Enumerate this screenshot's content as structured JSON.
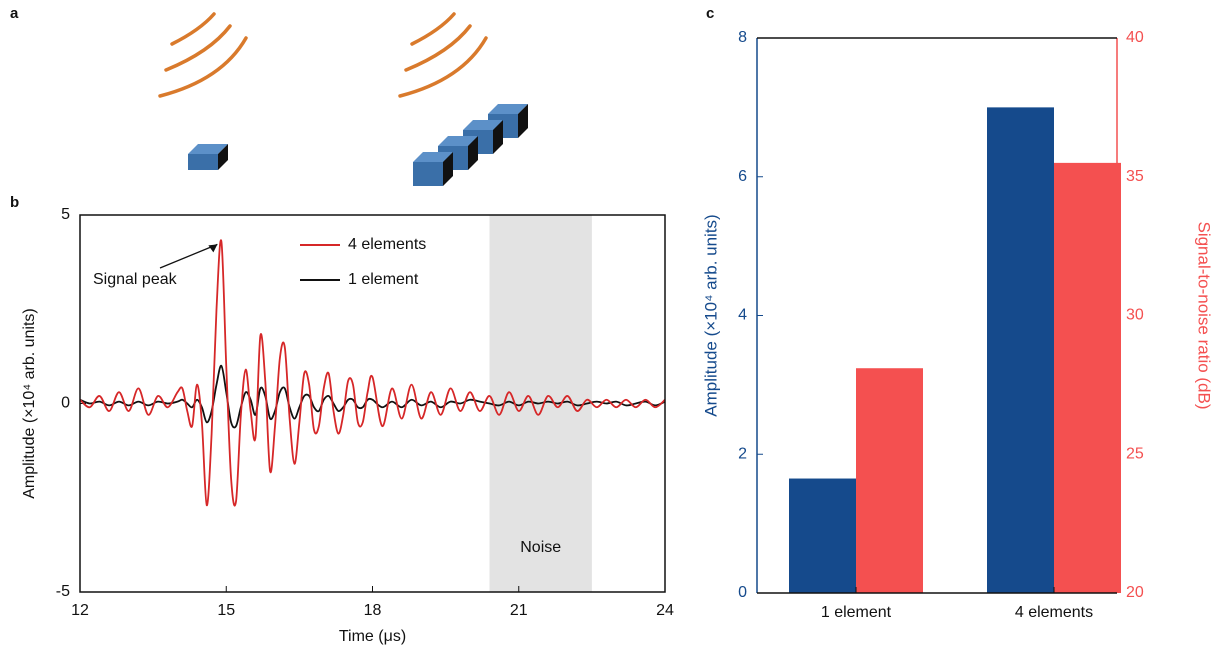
{
  "panel_labels": [
    "a",
    "b",
    "c"
  ],
  "chart_data": [
    {
      "type": "line",
      "xlabel": "Time (μs)",
      "ylabel": "Amplitude (×10⁴ arb. units)",
      "xlim": [
        12,
        24
      ],
      "ylim": [
        -5,
        5
      ],
      "xticks": [
        12,
        15,
        18,
        21,
        24
      ],
      "yticks": [
        -5,
        0,
        5
      ],
      "legend": "upper center",
      "annotations": [
        {
          "text": "Signal peak",
          "x": 14.9,
          "y": 4.3
        }
      ],
      "shaded_region": {
        "label": "Noise",
        "xmin": 20.4,
        "xmax": 22.5,
        "color": "#e3e3e3"
      },
      "x": [
        12.0,
        12.2,
        12.4,
        12.6,
        12.8,
        13.0,
        13.2,
        13.4,
        13.6,
        13.8,
        14.0,
        14.1,
        14.2,
        14.3,
        14.4,
        14.5,
        14.6,
        14.7,
        14.8,
        14.9,
        15.0,
        15.1,
        15.2,
        15.3,
        15.4,
        15.5,
        15.6,
        15.7,
        15.8,
        15.9,
        16.0,
        16.1,
        16.2,
        16.3,
        16.4,
        16.5,
        16.6,
        16.7,
        16.8,
        16.9,
        17.0,
        17.1,
        17.2,
        17.3,
        17.4,
        17.5,
        17.6,
        17.7,
        17.8,
        17.9,
        18.0,
        18.2,
        18.4,
        18.6,
        18.8,
        19.0,
        19.2,
        19.4,
        19.6,
        19.8,
        20.0,
        20.2,
        20.4,
        20.6,
        20.8,
        21.0,
        21.2,
        21.4,
        21.6,
        21.8,
        22.0,
        22.2,
        22.4,
        22.6,
        22.8,
        23.0,
        23.2,
        23.4,
        23.6,
        23.8,
        24.0
      ],
      "series": [
        {
          "name": "4 elements",
          "color": "#d62728",
          "values": [
            0.1,
            -0.1,
            0.2,
            -0.2,
            0.3,
            -0.2,
            0.4,
            -0.3,
            0.2,
            -0.1,
            0.3,
            0.4,
            -0.2,
            -0.6,
            0.5,
            -0.5,
            -2.7,
            -0.8,
            2.5,
            4.3,
            1.0,
            -2.0,
            -2.6,
            -0.3,
            0.9,
            -0.2,
            -0.9,
            1.8,
            0.6,
            -1.8,
            -0.6,
            1.2,
            1.5,
            -0.4,
            -1.6,
            -0.5,
            0.8,
            0.5,
            -0.7,
            -0.6,
            0.4,
            0.8,
            -0.2,
            -0.8,
            -0.3,
            0.6,
            0.5,
            -0.5,
            -0.5,
            0.3,
            0.7,
            -0.6,
            0.4,
            -0.4,
            0.5,
            -0.4,
            0.3,
            -0.3,
            0.4,
            -0.2,
            0.3,
            -0.2,
            0.2,
            -0.3,
            0.3,
            -0.2,
            0.2,
            -0.3,
            0.2,
            -0.1,
            0.2,
            -0.2,
            0.1,
            -0.1,
            0.1,
            -0.1,
            0.1,
            -0.1,
            0.1,
            -0.1,
            0.1
          ]
        },
        {
          "name": "1 element",
          "color": "#111111",
          "values": [
            0.1,
            0,
            0.05,
            -0.05,
            0.05,
            -0.05,
            0.05,
            -0.05,
            0.05,
            0,
            0.05,
            0.1,
            0,
            -0.1,
            0.1,
            -0.1,
            -0.5,
            -0.2,
            0.5,
            1.0,
            0.3,
            -0.5,
            -0.6,
            -0.1,
            0.3,
            0.1,
            -0.3,
            0.4,
            0.2,
            -0.4,
            -0.2,
            0.3,
            0.4,
            -0.1,
            -0.4,
            -0.1,
            0.2,
            0.2,
            -0.1,
            -0.2,
            0.1,
            0.2,
            0,
            -0.2,
            -0.1,
            0.1,
            0.1,
            -0.1,
            -0.1,
            0.1,
            0.1,
            -0.1,
            0.05,
            -0.1,
            0.1,
            -0.05,
            0.05,
            -0.1,
            0.05,
            0,
            0.1,
            0.05,
            0,
            -0.05,
            0.05,
            -0.05,
            0.05,
            0,
            0.05,
            0,
            0.05,
            -0.05,
            0,
            0.05,
            0,
            0.05,
            -0.05,
            0,
            0.05,
            -0.05,
            0.05
          ]
        }
      ]
    },
    {
      "type": "bar",
      "categories": [
        "1 element",
        "4 elements"
      ],
      "ylabel": "Amplitude (×10⁴ arb. units)",
      "y2label": "Signal-to-noise ratio (dB)",
      "ylim": [
        0,
        8
      ],
      "yticks": [
        0,
        2,
        4,
        6,
        8
      ],
      "y2lim": [
        20,
        40
      ],
      "y2ticks": [
        20,
        25,
        30,
        35,
        40
      ],
      "series": [
        {
          "color": "#154a8c",
          "values": [
            1.65,
            7.0
          ]
        },
        {
          "color": "#f45050",
          "axis": "y2",
          "values": [
            28.1,
            35.5
          ]
        }
      ]
    }
  ]
}
